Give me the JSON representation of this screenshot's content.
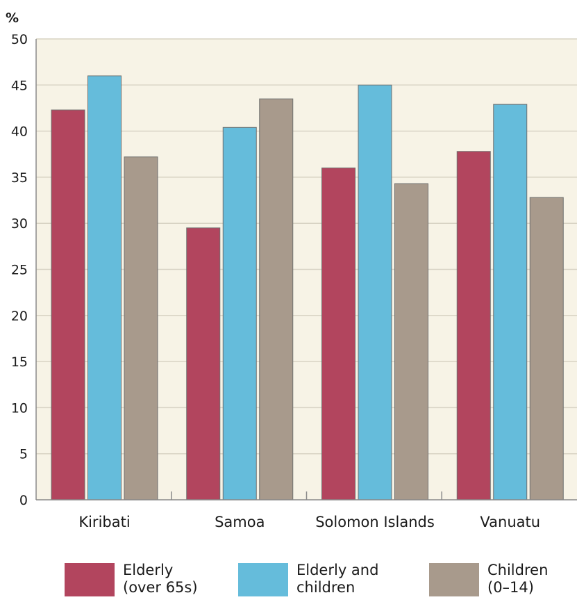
{
  "chart_data": {
    "type": "bar",
    "unit_label": "%",
    "categories": [
      "Kiribati",
      "Samoa",
      "Solomon Islands",
      "Vanuatu"
    ],
    "series": [
      {
        "name": "Elderly\n(over 65s)",
        "color": "#b2455e",
        "values": [
          42.3,
          29.5,
          36.0,
          37.8
        ]
      },
      {
        "name": "Elderly and\nchildren",
        "color": "#65bcdb",
        "values": [
          46.0,
          40.4,
          45.0,
          42.9
        ]
      },
      {
        "name": "Children\n(0–14)",
        "color": "#a89a8c",
        "values": [
          37.2,
          43.5,
          34.3,
          32.8
        ]
      }
    ],
    "ylim": [
      0,
      50
    ],
    "yticks": [
      0,
      5,
      10,
      15,
      20,
      25,
      30,
      35,
      40,
      45,
      50
    ],
    "grid": true,
    "legend_position": "bottom",
    "plot_background": "#f7f3e6",
    "grid_color": "#d8d3c4"
  }
}
